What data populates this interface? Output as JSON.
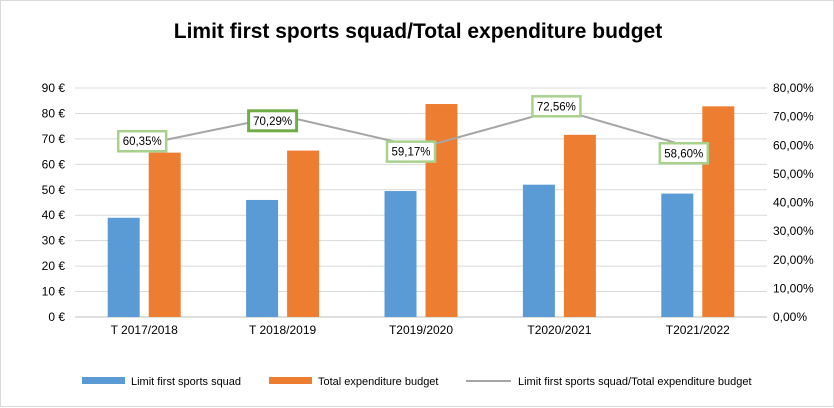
{
  "chart_data": {
    "type": "bar",
    "title": "Limit first sports squad/Total expenditure budget",
    "categories": [
      "T 2017/2018",
      "T 2018/2019",
      "T2019/2020",
      "T2020/2021",
      "T2021/2022"
    ],
    "series": [
      {
        "name": "Limit first sports squad",
        "type": "bar",
        "axis": "left",
        "color": "#5b9bd5",
        "values": [
          39,
          46,
          49.5,
          52,
          48.5
        ]
      },
      {
        "name": "Total expenditure budget",
        "type": "bar",
        "axis": "left",
        "color": "#ed7d31",
        "values": [
          64.6,
          65.4,
          83.7,
          71.6,
          82.8
        ]
      },
      {
        "name": "Limit first sports squad/Total expenditure budget",
        "type": "line",
        "axis": "right",
        "color": "#a5a5a5",
        "values": [
          60.35,
          70.29,
          59.17,
          72.56,
          58.6
        ],
        "labels": [
          "60,35%",
          "70,29%",
          "59,17%",
          "72,56%",
          "58,60%"
        ]
      }
    ],
    "left_axis": {
      "min": 0,
      "max": 90,
      "step": 10,
      "tick_labels": [
        "0 €",
        "10 €",
        "20 €",
        "30 €",
        "40 €",
        "50 €",
        "60 €",
        "70 €",
        "80 €",
        "90 €"
      ]
    },
    "right_axis": {
      "min": 0,
      "max": 80,
      "step": 10,
      "tick_labels": [
        "0,00%",
        "10,00%",
        "20,00%",
        "30,00%",
        "40,00%",
        "50,00%",
        "60,00%",
        "70,00%",
        "80,00%"
      ]
    },
    "grid": true,
    "legend_position": "bottom",
    "label_box_color": "#a9d18e",
    "label_box_highlight_color": "#70ad47"
  }
}
